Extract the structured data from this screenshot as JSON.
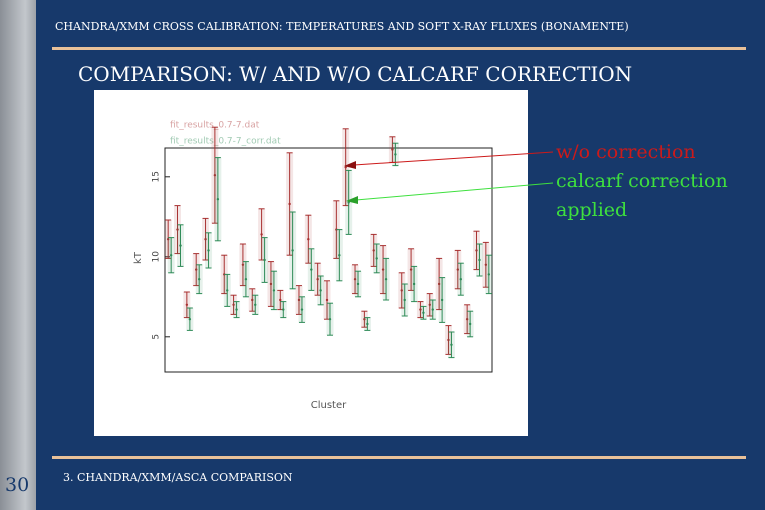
{
  "header": "CHANDRA/XMM CROSS CALIBRATION: TEMPERATURES AND SOFT X-RAY FLUXES (BONAMENTE)",
  "title": "COMPARISON: W/ AND W/O CALCARF CORRECTION",
  "annotations": [
    {
      "text": "w/o correction",
      "color": "#cc1a1a"
    },
    {
      "text": "calcarf correction applied",
      "color": "#3ee03e"
    }
  ],
  "footer": "3. CHANDRA/XMM/ASCA COMPARISON",
  "page_number": "30",
  "chart_data": {
    "type": "errorbar",
    "xlabel": "Cluster",
    "ylabel": "kT",
    "categories": [
      null,
      null,
      null,
      null,
      null,
      null,
      null,
      null,
      null,
      null,
      null,
      null,
      null,
      null,
      null,
      null,
      null,
      null,
      null,
      null,
      null,
      null,
      null,
      null,
      null,
      null,
      null,
      null,
      null,
      null,
      null,
      null,
      null,
      null,
      null
    ],
    "series": [
      {
        "name": "fit_results_0.7-7.dat",
        "color": "#a83030",
        "values": [
          11.1,
          11.7,
          7.0,
          9.2,
          11.1,
          15.1,
          8.9,
          7.0,
          9.5,
          7.3,
          11.4,
          8.3,
          7.3,
          13.3,
          7.3,
          11.1,
          8.6,
          7.3,
          11.7,
          15.6,
          8.6,
          6.1,
          10.4,
          9.2,
          16.7,
          7.9,
          9.2,
          6.7,
          7.0,
          8.3,
          4.8,
          9.2,
          6.1,
          10.4,
          9.5
        ],
        "errors": [
          1.2,
          1.5,
          0.8,
          1.0,
          1.3,
          3.0,
          1.2,
          0.6,
          1.3,
          0.7,
          1.6,
          1.4,
          0.6,
          3.2,
          0.9,
          1.5,
          1.0,
          1.2,
          1.8,
          2.4,
          0.9,
          0.5,
          1.0,
          1.5,
          0.8,
          1.1,
          1.3,
          0.5,
          0.7,
          1.6,
          0.9,
          1.2,
          0.9,
          1.2,
          1.4
        ]
      },
      {
        "name": "fit_results_0.7-7_corr.dat",
        "color": "#2e8b57",
        "values": [
          10.1,
          10.7,
          6.1,
          8.6,
          10.4,
          13.6,
          7.9,
          6.7,
          8.6,
          7.0,
          9.8,
          7.9,
          6.7,
          10.4,
          6.7,
          9.2,
          7.9,
          6.1,
          10.1,
          13.4,
          8.3,
          5.8,
          9.9,
          8.6,
          16.4,
          7.3,
          8.3,
          6.5,
          6.7,
          7.3,
          4.5,
          8.6,
          5.8,
          9.8,
          8.9
        ],
        "errors": [
          1.1,
          1.3,
          0.7,
          0.9,
          1.1,
          2.6,
          1.0,
          0.5,
          1.1,
          0.6,
          1.4,
          1.2,
          0.5,
          2.4,
          0.8,
          1.3,
          0.9,
          1.0,
          1.6,
          2.0,
          0.8,
          0.4,
          0.9,
          1.3,
          0.7,
          1.0,
          1.1,
          0.4,
          0.6,
          1.4,
          0.8,
          1.0,
          0.8,
          1.0,
          1.2
        ]
      }
    ],
    "ylim": [
      2.8,
      16.8
    ],
    "yticks": [
      5,
      10,
      15
    ]
  }
}
